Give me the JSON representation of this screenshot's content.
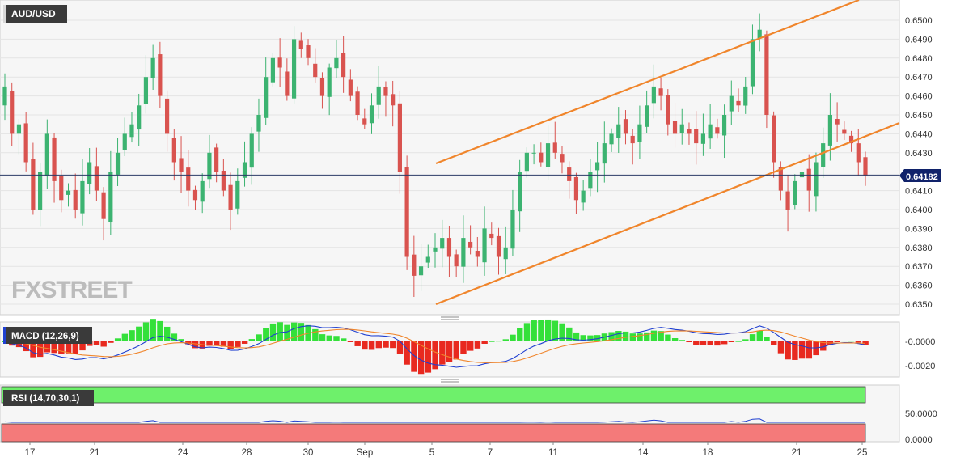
{
  "header": {
    "pair": "AUD/USD",
    "watermark": "FXSTREET"
  },
  "colors": {
    "up": "#3cb371",
    "down": "#d9534f",
    "trend": "#f0852b",
    "macd": "#1f3fd0",
    "signal": "#f0852b",
    "hist_pos": "#34e03a",
    "hist_neg": "#e8291f",
    "rsi": "#1f3fd0",
    "overbought": "#6ef06b",
    "oversold": "#f47a7a",
    "panel_bg": "#f5f5f5",
    "price_line": "#2a3a66",
    "label_bg": "#10226a"
  },
  "price_panel": {
    "y_ticks": [
      "0.6500",
      "0.6490",
      "0.6480",
      "0.6470",
      "0.6460",
      "0.6450",
      "0.6440",
      "0.6430",
      "0.6410",
      "0.6400",
      "0.6390",
      "0.6380",
      "0.6370",
      "0.6360",
      "0.6350"
    ],
    "current_price": "0.64182",
    "current_value": 0.64182
  },
  "macd_panel": {
    "label": "MACD (12,26,9)",
    "y_ticks": [
      "-0.0000",
      "-0.0020"
    ]
  },
  "rsi_panel": {
    "label": "RSI (14,70,30,1)",
    "y_ticks": [
      "50.0000",
      "0.0000"
    ]
  },
  "x_axis": {
    "ticks": [
      "17",
      "21",
      "24",
      "28",
      "30",
      "Sep",
      "5",
      "7",
      "11",
      "14",
      "18",
      "21",
      "25"
    ]
  },
  "chart_data": {
    "type": "candlestick",
    "symbol": "AUD/USD",
    "ylim": [
      0.6345,
      0.651
    ],
    "x_ticks": [
      "17",
      "21",
      "24",
      "28",
      "30",
      "Sep",
      "5",
      "7",
      "11",
      "14",
      "18",
      "21",
      "25"
    ],
    "last_price": 0.64182,
    "closes": [
      0.6465,
      0.644,
      0.6445,
      0.6425,
      0.64,
      0.642,
      0.644,
      0.6415,
      0.6405,
      0.641,
      0.64,
      0.6415,
      0.6425,
      0.641,
      0.6395,
      0.642,
      0.643,
      0.644,
      0.6445,
      0.6455,
      0.647,
      0.648,
      0.646,
      0.644,
      0.6425,
      0.642,
      0.641,
      0.6405,
      0.6415,
      0.643,
      0.642,
      0.641,
      0.64,
      0.6415,
      0.6425,
      0.644,
      0.645,
      0.647,
      0.648,
      0.6475,
      0.646,
      0.649,
      0.6485,
      0.648,
      0.647,
      0.646,
      0.6475,
      0.648,
      0.647,
      0.646,
      0.645,
      0.6445,
      0.6455,
      0.6465,
      0.646,
      0.6455,
      0.642,
      0.6375,
      0.6365,
      0.637,
      0.6375,
      0.638,
      0.6385,
      0.6375,
      0.637,
      0.6385,
      0.638,
      0.6375,
      0.639,
      0.6385,
      0.6375,
      0.638,
      0.64,
      0.642,
      0.643,
      0.643,
      0.6425,
      0.6435,
      0.643,
      0.6425,
      0.6415,
      0.6405,
      0.641,
      0.642,
      0.6425,
      0.6435,
      0.644,
      0.6445,
      0.644,
      0.6435,
      0.6445,
      0.6455,
      0.6465,
      0.646,
      0.6445,
      0.644,
      0.6445,
      0.644,
      0.6435,
      0.644,
      0.6445,
      0.644,
      0.645,
      0.646,
      0.6455,
      0.6465,
      0.649,
      0.6495,
      0.645,
      0.6425,
      0.641,
      0.64,
      0.6415,
      0.642,
      0.641,
      0.6425,
      0.6435,
      0.645,
      0.6445,
      0.644,
      0.6435,
      0.6425,
      0.6418
    ]
  }
}
